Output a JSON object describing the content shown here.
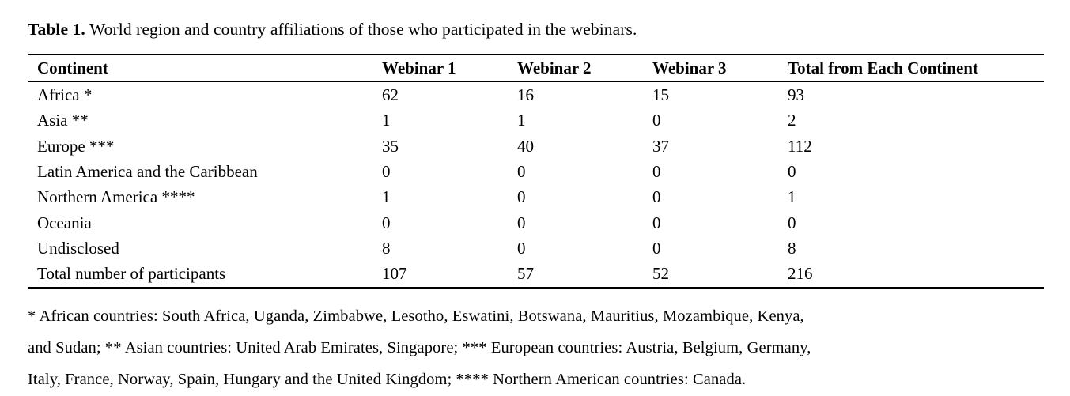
{
  "caption": {
    "label": "Table 1.",
    "text": " World region and country affiliations of those who participated in the webinars."
  },
  "table": {
    "headers": [
      "Continent",
      "Webinar 1",
      "Webinar 2",
      "Webinar 3",
      "Total from Each Continent"
    ],
    "rows": [
      {
        "continent": "Africa *",
        "w1": "62",
        "w2": "16",
        "w3": "15",
        "total": "93"
      },
      {
        "continent": "Asia **",
        "w1": "1",
        "w2": "1",
        "w3": "0",
        "total": "2"
      },
      {
        "continent": "Europe ***",
        "w1": "35",
        "w2": "40",
        "w3": "37",
        "total": "112"
      },
      {
        "continent": "Latin America and the Caribbean",
        "w1": "0",
        "w2": "0",
        "w3": "0",
        "total": "0"
      },
      {
        "continent": "Northern America ****",
        "w1": "1",
        "w2": "0",
        "w3": "0",
        "total": "1"
      },
      {
        "continent": "Oceania",
        "w1": "0",
        "w2": "0",
        "w3": "0",
        "total": "0"
      },
      {
        "continent": "Undisclosed",
        "w1": "8",
        "w2": "0",
        "w3": "0",
        "total": "8"
      },
      {
        "continent": "Total number of participants",
        "w1": "107",
        "w2": "57",
        "w3": "52",
        "total": "216"
      }
    ]
  },
  "footnotes": {
    "lines": [
      "* African countries: South Africa, Uganda, Zimbabwe, Lesotho, Eswatini, Botswana, Mauritius, Mozambique, Kenya,",
      "and Sudan; ** Asian countries: United Arab Emirates, Singapore; *** European countries: Austria, Belgium, Germany,",
      "Italy, France, Norway, Spain, Hungary and the United Kingdom; **** Northern American countries: Canada."
    ]
  }
}
